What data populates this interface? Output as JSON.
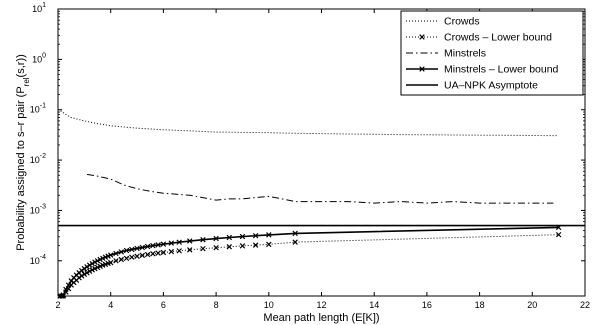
{
  "chart_data": {
    "type": "line",
    "xlabel": "Mean path length (E[K])",
    "ylabel_main": "Probability assigned to s–r pair (P",
    "ylabel_sub": "rel",
    "ylabel_tail": "(s,r))",
    "xlim": [
      2,
      22
    ],
    "ylim": [
      2e-05,
      10
    ],
    "yscale": "log",
    "grid": false,
    "legend_position": "top-right",
    "x_ticks": [
      "2",
      "4",
      "6",
      "8",
      "10",
      "12",
      "14",
      "16",
      "18",
      "20",
      "22"
    ],
    "y_ticks": [
      {
        "base": "10",
        "exp": "1"
      },
      {
        "base": "10",
        "exp": "0"
      },
      {
        "base": "10",
        "exp": "-1"
      },
      {
        "base": "10",
        "exp": "-2"
      },
      {
        "base": "10",
        "exp": "-3"
      },
      {
        "base": "10",
        "exp": "-4"
      }
    ],
    "series": [
      {
        "name": "Crowds",
        "style": "dotted",
        "marker": "none",
        "x": [
          2.1,
          2.3,
          2.5,
          3.0,
          3.5,
          4,
          5,
          6,
          7,
          8,
          9,
          10,
          11,
          12,
          13,
          14,
          15,
          16,
          17,
          18,
          19,
          20,
          21
        ],
        "y": [
          0.095,
          0.08,
          0.07,
          0.06,
          0.053,
          0.048,
          0.043,
          0.04,
          0.038,
          0.036,
          0.0355,
          0.035,
          0.034,
          0.0335,
          0.033,
          0.0325,
          0.032,
          0.0318,
          0.0315,
          0.0312,
          0.031,
          0.0308,
          0.0305
        ]
      },
      {
        "name": "Crowds – Lower bound",
        "style": "dotted",
        "marker": "x",
        "x": [
          2.08,
          2.15,
          2.2,
          2.3,
          2.4,
          2.5,
          2.6,
          2.7,
          2.8,
          2.9,
          3.0,
          3.1,
          3.2,
          3.3,
          3.4,
          3.5,
          3.6,
          3.7,
          3.8,
          3.9,
          4.0,
          4.2,
          4.4,
          4.6,
          4.8,
          5.0,
          5.2,
          5.4,
          5.6,
          5.8,
          6.0,
          6.3,
          6.6,
          7.0,
          7.5,
          8.0,
          8.5,
          9.0,
          9.5,
          10,
          11,
          21
        ],
        "y": [
          1.2e-05,
          1.6e-05,
          1.9e-05,
          2.4e-05,
          2.8e-05,
          3.3e-05,
          3.7e-05,
          4.1e-05,
          4.6e-05,
          5e-05,
          5.4e-05,
          5.8e-05,
          6.2e-05,
          6.6e-05,
          7e-05,
          7.4e-05,
          7.8e-05,
          8.2e-05,
          8.5e-05,
          8.9e-05,
          9.2e-05,
          0.0001,
          0.000106,
          0.000112,
          0.000118,
          0.000123,
          0.000128,
          0.000133,
          0.000138,
          0.000142,
          0.000146,
          0.000152,
          0.000158,
          0.000165,
          0.000174,
          0.000182,
          0.00019,
          0.000198,
          0.000205,
          0.000212,
          0.000235,
          0.00033
        ]
      },
      {
        "name": "Minstrels",
        "style": "dashdot",
        "marker": "none",
        "x": [
          3.1,
          3.5,
          4,
          4.5,
          5,
          5.5,
          6,
          6.5,
          7,
          7.5,
          8,
          8.5,
          9,
          9.5,
          10,
          10.5,
          11,
          12,
          13,
          14,
          15,
          16,
          17,
          18,
          19,
          20,
          20.8
        ],
        "y": [
          0.0052,
          0.0048,
          0.0042,
          0.0032,
          0.0027,
          0.0024,
          0.0022,
          0.0021,
          0.002,
          0.0018,
          0.0016,
          0.0017,
          0.0017,
          0.0018,
          0.0019,
          0.0017,
          0.0015,
          0.0015,
          0.0015,
          0.0014,
          0.0015,
          0.0014,
          0.0015,
          0.0014,
          0.0014,
          0.0014,
          0.0014
        ]
      },
      {
        "name": "Minstrels – Lower bound",
        "style": "solid",
        "marker": "x",
        "x": [
          2.08,
          2.15,
          2.2,
          2.3,
          2.4,
          2.5,
          2.6,
          2.7,
          2.8,
          2.9,
          3.0,
          3.1,
          3.2,
          3.3,
          3.4,
          3.5,
          3.6,
          3.7,
          3.8,
          3.9,
          4.0,
          4.2,
          4.4,
          4.6,
          4.8,
          5.0,
          5.2,
          5.4,
          5.6,
          5.8,
          6.0,
          6.3,
          6.6,
          7.0,
          7.5,
          8.0,
          8.5,
          9.0,
          9.5,
          10,
          11,
          21
        ],
        "y": [
          1.2e-05,
          1.7e-05,
          2.1e-05,
          2.7e-05,
          3.3e-05,
          4e-05,
          4.6e-05,
          5.2e-05,
          5.8e-05,
          6.4e-05,
          7e-05,
          7.6e-05,
          8.2e-05,
          8.8e-05,
          9.4e-05,
          0.0001,
          0.000106,
          0.000112,
          0.000118,
          0.000124,
          0.00013,
          0.00014,
          0.00015,
          0.00016,
          0.000168,
          0.000176,
          0.000184,
          0.000192,
          0.0002,
          0.000207,
          0.000214,
          0.000224,
          0.000234,
          0.000247,
          0.000262,
          0.000277,
          0.00029,
          0.000303,
          0.000315,
          0.000327,
          0.00035,
          0.00046
        ]
      },
      {
        "name": "UA–NPK Asymptote",
        "style": "solid",
        "marker": "none",
        "x": [
          2,
          22
        ],
        "y": [
          0.0005,
          0.0005
        ]
      }
    ]
  }
}
